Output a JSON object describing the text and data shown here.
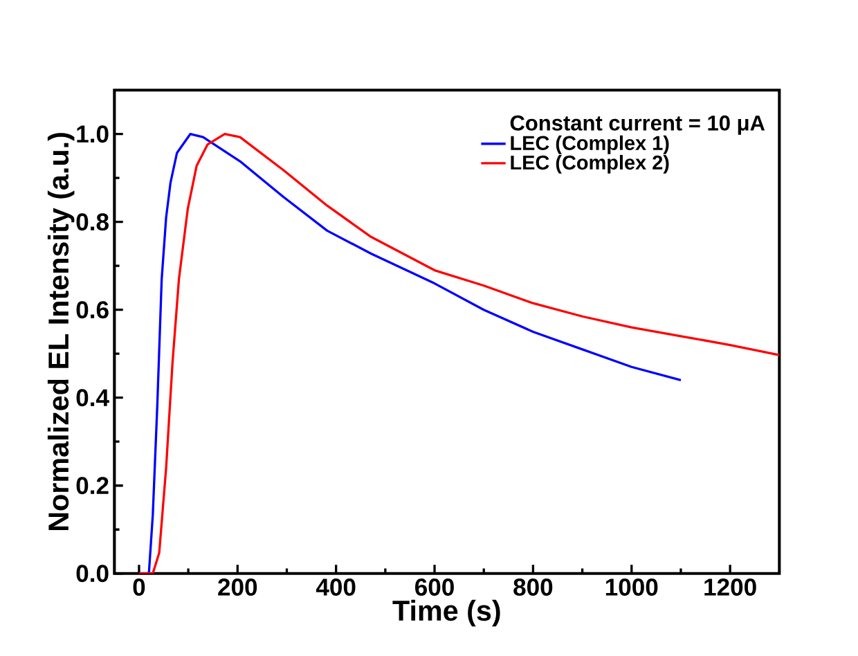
{
  "chart_data": {
    "type": "line",
    "xlabel": "Time (s)",
    "ylabel": "Normalized EL Intensity (a.u.)",
    "legend_title": "Constant current = 10 μA",
    "xlim": [
      -50,
      1300
    ],
    "ylim": [
      0,
      1.1
    ],
    "xticks": [
      0,
      200,
      400,
      600,
      800,
      1000,
      1200
    ],
    "yticks": [
      {
        "value": 0,
        "label": "0.0"
      },
      {
        "value": 0.2,
        "label": "0.2"
      },
      {
        "value": 0.4,
        "label": "0.4"
      },
      {
        "value": 0.6,
        "label": "0.6"
      },
      {
        "value": 0.8,
        "label": "0.8"
      },
      {
        "value": 1,
        "label": "1.0"
      }
    ],
    "legend": "top right",
    "grid": false,
    "marker": "none",
    "line_style": "solid",
    "series": [
      {
        "name": "LEC (Complex 1)",
        "color": "#0000ff",
        "x": [
          0,
          20,
          28,
          37,
          46,
          55,
          64,
          77,
          104,
          130,
          205,
          293,
          382,
          471,
          600,
          700,
          800,
          900,
          1000,
          1100
        ],
        "values": [
          0,
          0,
          0.134,
          0.38,
          0.67,
          0.81,
          0.89,
          0.957,
          1.0,
          0.993,
          0.938,
          0.857,
          0.78,
          0.728,
          0.66,
          0.6,
          0.55,
          0.51,
          0.47,
          0.44
        ]
      },
      {
        "name": "LEC (Complex 2)",
        "color": "#ff0000",
        "x": [
          0,
          28,
          41,
          55,
          68,
          81,
          99,
          117,
          139,
          174,
          205,
          293,
          382,
          471,
          600,
          700,
          800,
          900,
          1000,
          1100,
          1200,
          1300
        ],
        "values": [
          0,
          0,
          0.047,
          0.24,
          0.48,
          0.67,
          0.83,
          0.928,
          0.976,
          1.0,
          0.993,
          0.918,
          0.837,
          0.766,
          0.69,
          0.655,
          0.615,
          0.585,
          0.56,
          0.54,
          0.52,
          0.497
        ]
      }
    ]
  }
}
